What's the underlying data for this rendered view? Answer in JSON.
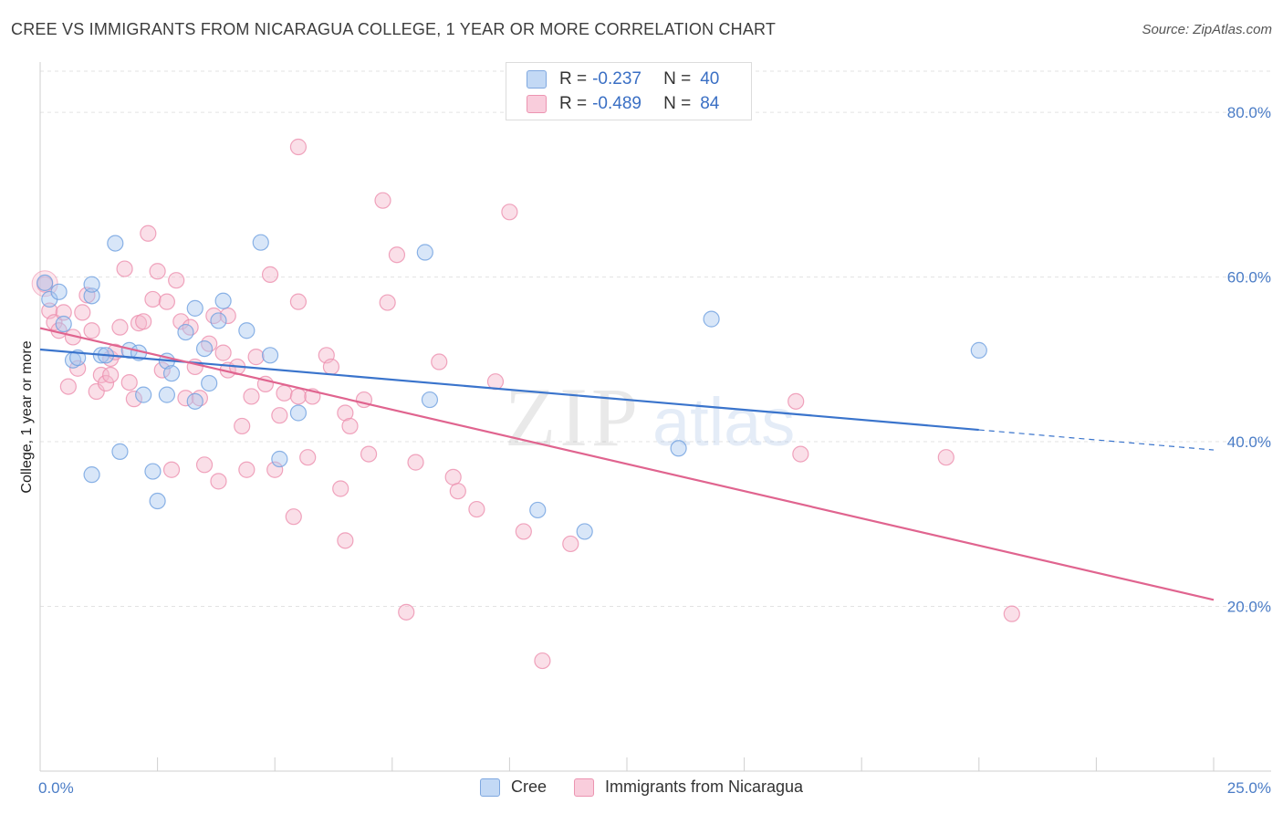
{
  "title": "CREE VS IMMIGRANTS FROM NICARAGUA COLLEGE, 1 YEAR OR MORE CORRELATION CHART",
  "source": "Source: ZipAtlas.com",
  "watermark": {
    "zip": "ZIP",
    "atlas": "atlas"
  },
  "legend_stats": [
    {
      "r_label": "R =",
      "r_value": "-0.237",
      "n_label": "N =",
      "n_value": "40",
      "color": "#a8c8f0"
    },
    {
      "r_label": "R =",
      "r_value": "-0.489",
      "n_label": "N =",
      "n_value": "84",
      "color": "#f5b8cc"
    }
  ],
  "bottom_legend": [
    {
      "label": "Cree",
      "color": "#a8c8f0"
    },
    {
      "label": "Immigrants from Nicaragua",
      "color": "#f5b8cc"
    }
  ],
  "chart_data": {
    "type": "scatter",
    "title": "CREE VS IMMIGRANTS FROM NICARAGUA COLLEGE, 1 YEAR OR MORE CORRELATION CHART",
    "xlabel": "",
    "ylabel": "College, 1 year or more",
    "xlim": [
      0,
      25
    ],
    "ylim": [
      0,
      85
    ],
    "x_tick_labels": [
      "0.0%",
      "25.0%"
    ],
    "y_ticks": [
      20,
      40,
      60,
      80
    ],
    "y_tick_labels": [
      "20.0%",
      "40.0%",
      "60.0%",
      "80.0%"
    ],
    "series": [
      {
        "name": "Cree",
        "color": "#6fa0e0",
        "fill": "#a8c8f0",
        "trend": {
          "x0": 0,
          "y0": 51.2,
          "x1": 25,
          "y1": 39.0,
          "solid_until": 20.0
        },
        "points": [
          [
            0.1,
            59.3
          ],
          [
            0.2,
            57.3
          ],
          [
            0.4,
            58.2
          ],
          [
            0.5,
            54.3
          ],
          [
            0.7,
            49.9
          ],
          [
            0.8,
            50.2
          ],
          [
            1.1,
            57.7
          ],
          [
            1.1,
            59.1
          ],
          [
            1.1,
            36.0
          ],
          [
            1.3,
            50.5
          ],
          [
            1.4,
            50.5
          ],
          [
            1.6,
            64.1
          ],
          [
            1.7,
            38.8
          ],
          [
            1.9,
            51.1
          ],
          [
            2.1,
            50.8
          ],
          [
            2.2,
            45.7
          ],
          [
            2.4,
            36.4
          ],
          [
            2.5,
            32.8
          ],
          [
            2.7,
            49.8
          ],
          [
            2.7,
            45.7
          ],
          [
            2.8,
            48.3
          ],
          [
            3.1,
            53.3
          ],
          [
            3.3,
            56.2
          ],
          [
            3.3,
            44.9
          ],
          [
            3.5,
            51.3
          ],
          [
            3.6,
            47.1
          ],
          [
            3.8,
            54.7
          ],
          [
            3.9,
            57.1
          ],
          [
            4.4,
            53.5
          ],
          [
            4.7,
            64.2
          ],
          [
            4.9,
            50.5
          ],
          [
            5.1,
            37.9
          ],
          [
            5.5,
            43.5
          ],
          [
            8.2,
            63.0
          ],
          [
            8.3,
            45.1
          ],
          [
            10.6,
            31.7
          ],
          [
            11.6,
            29.1
          ],
          [
            13.6,
            39.2
          ],
          [
            14.3,
            54.9
          ],
          [
            20.0,
            51.1
          ]
        ]
      },
      {
        "name": "Immigrants from Nicaragua",
        "color": "#ec8fae",
        "fill": "#f5b8cc",
        "trend": {
          "x0": 0,
          "y0": 53.8,
          "x1": 25,
          "y1": 20.8,
          "solid_until": 25
        },
        "points": [
          [
            0.1,
            59.1
          ],
          [
            0.2,
            55.9
          ],
          [
            0.3,
            54.5
          ],
          [
            0.4,
            53.5
          ],
          [
            0.5,
            55.7
          ],
          [
            0.6,
            46.7
          ],
          [
            0.7,
            52.7
          ],
          [
            0.8,
            48.9
          ],
          [
            0.9,
            55.7
          ],
          [
            1.0,
            57.8
          ],
          [
            1.1,
            53.5
          ],
          [
            1.2,
            46.1
          ],
          [
            1.3,
            48.1
          ],
          [
            1.4,
            47.1
          ],
          [
            1.5,
            50.1
          ],
          [
            1.6,
            50.9
          ],
          [
            1.7,
            53.9
          ],
          [
            1.8,
            61.0
          ],
          [
            1.9,
            47.2
          ],
          [
            2.0,
            45.2
          ],
          [
            2.1,
            54.4
          ],
          [
            2.2,
            54.6
          ],
          [
            2.3,
            65.3
          ],
          [
            2.4,
            57.3
          ],
          [
            2.5,
            60.7
          ],
          [
            2.6,
            48.7
          ],
          [
            2.7,
            57.0
          ],
          [
            2.8,
            36.6
          ],
          [
            2.9,
            59.6
          ],
          [
            3.0,
            54.6
          ],
          [
            3.1,
            45.3
          ],
          [
            3.2,
            53.9
          ],
          [
            3.3,
            49.1
          ],
          [
            3.4,
            45.3
          ],
          [
            3.5,
            37.2
          ],
          [
            3.6,
            51.9
          ],
          [
            3.7,
            55.3
          ],
          [
            3.8,
            35.2
          ],
          [
            3.9,
            50.8
          ],
          [
            4.0,
            48.7
          ],
          [
            4.2,
            49.1
          ],
          [
            4.3,
            41.9
          ],
          [
            4.4,
            36.6
          ],
          [
            4.5,
            45.5
          ],
          [
            4.6,
            50.3
          ],
          [
            4.8,
            47.0
          ],
          [
            4.9,
            60.3
          ],
          [
            5.0,
            36.6
          ],
          [
            5.1,
            43.2
          ],
          [
            5.2,
            45.9
          ],
          [
            5.4,
            30.9
          ],
          [
            5.5,
            45.5
          ],
          [
            5.5,
            57.0
          ],
          [
            5.5,
            75.8
          ],
          [
            5.7,
            38.1
          ],
          [
            5.8,
            45.5
          ],
          [
            6.1,
            50.5
          ],
          [
            6.2,
            49.1
          ],
          [
            6.4,
            34.3
          ],
          [
            6.5,
            43.5
          ],
          [
            6.5,
            28.0
          ],
          [
            6.6,
            41.9
          ],
          [
            6.9,
            45.1
          ],
          [
            7.0,
            38.5
          ],
          [
            7.3,
            69.3
          ],
          [
            7.4,
            56.9
          ],
          [
            7.6,
            62.7
          ],
          [
            7.8,
            19.3
          ],
          [
            8.0,
            37.5
          ],
          [
            8.5,
            49.7
          ],
          [
            8.8,
            35.7
          ],
          [
            8.9,
            34.0
          ],
          [
            9.3,
            31.8
          ],
          [
            9.7,
            47.3
          ],
          [
            10.0,
            67.9
          ],
          [
            10.3,
            29.1
          ],
          [
            10.7,
            13.4
          ],
          [
            11.3,
            27.6
          ],
          [
            16.2,
            38.5
          ],
          [
            16.1,
            44.9
          ],
          [
            19.3,
            38.1
          ],
          [
            20.7,
            19.1
          ],
          [
            4.0,
            55.3
          ],
          [
            1.5,
            48.1
          ]
        ]
      }
    ]
  }
}
